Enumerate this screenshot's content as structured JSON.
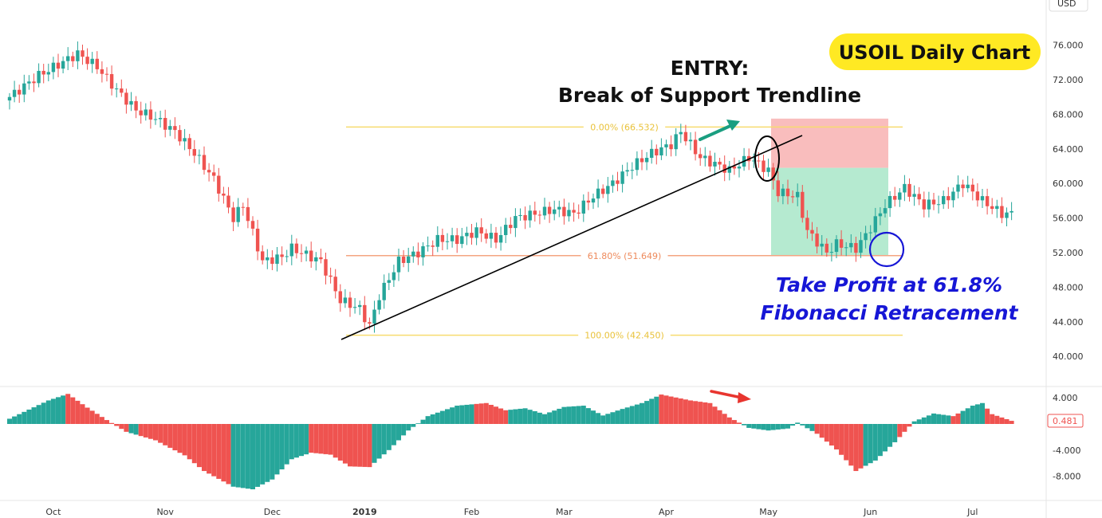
{
  "chart_data": {
    "title": "USOIL Daily Chart",
    "currency": "USD",
    "type": "candlestick",
    "grid": false,
    "price_axis": {
      "ticks": [
        "76.000",
        "72.000",
        "68.000",
        "64.000",
        "60.000",
        "56.000",
        "52.000",
        "48.000",
        "44.000",
        "40.000"
      ],
      "range": [
        38,
        78
      ]
    },
    "osc_axis": {
      "ticks": [
        "4.000",
        "-4.000",
        "-8.000"
      ],
      "last_value": "0.481",
      "range": [
        -10,
        5.5
      ]
    },
    "x_axis": {
      "ticks": [
        "Oct",
        "Nov",
        "Dec",
        "2019",
        "Feb",
        "Mar",
        "Apr",
        "May",
        "Jun",
        "Jul"
      ]
    },
    "price_path": [
      [
        0,
        70.0
      ],
      [
        6,
        72.5
      ],
      [
        14,
        75.0
      ],
      [
        18,
        73.5
      ],
      [
        22,
        70.8
      ],
      [
        26,
        68.5
      ],
      [
        30,
        67.5
      ],
      [
        34,
        66.0
      ],
      [
        38,
        63.5
      ],
      [
        42,
        60.5
      ],
      [
        46,
        56.0
      ],
      [
        48,
        57.5
      ],
      [
        52,
        51.0
      ],
      [
        56,
        51.5
      ],
      [
        58,
        52.5
      ],
      [
        62,
        51.5
      ],
      [
        64,
        51.0
      ],
      [
        68,
        46.5
      ],
      [
        72,
        45.5
      ],
      [
        74,
        43.5
      ],
      [
        76,
        47.0
      ],
      [
        80,
        51.0
      ],
      [
        84,
        52.0
      ],
      [
        88,
        53.5
      ],
      [
        92,
        53.5
      ],
      [
        96,
        54.5
      ],
      [
        100,
        53.5
      ],
      [
        104,
        56.0
      ],
      [
        108,
        56.5
      ],
      [
        112,
        57.0
      ],
      [
        116,
        56.5
      ],
      [
        120,
        58.5
      ],
      [
        124,
        60.0
      ],
      [
        128,
        62.0
      ],
      [
        132,
        63.5
      ],
      [
        136,
        64.5
      ],
      [
        138,
        66.0
      ],
      [
        140,
        64.5
      ],
      [
        142,
        63.0
      ],
      [
        144,
        62.5
      ],
      [
        148,
        61.5
      ],
      [
        152,
        63.0
      ],
      [
        156,
        61.5
      ],
      [
        158,
        59.0
      ],
      [
        162,
        58.5
      ],
      [
        164,
        54.5
      ],
      [
        168,
        52.0
      ],
      [
        170,
        53.0
      ],
      [
        174,
        52.5
      ],
      [
        176,
        54.0
      ],
      [
        180,
        57.5
      ],
      [
        184,
        59.5
      ],
      [
        188,
        57.5
      ],
      [
        192,
        58.0
      ],
      [
        196,
        60.0
      ],
      [
        200,
        58.0
      ],
      [
        204,
        56.5
      ],
      [
        206,
        56.5
      ]
    ],
    "osc_path": [
      [
        0,
        0.8
      ],
      [
        8,
        3.6
      ],
      [
        12,
        4.6
      ],
      [
        16,
        2.5
      ],
      [
        20,
        0.6
      ],
      [
        24,
        -1.2
      ],
      [
        30,
        -2.5
      ],
      [
        36,
        -4.8
      ],
      [
        40,
        -7.2
      ],
      [
        46,
        -9.6
      ],
      [
        50,
        -10.0
      ],
      [
        54,
        -8.5
      ],
      [
        58,
        -5.4
      ],
      [
        62,
        -4.4
      ],
      [
        66,
        -4.7
      ],
      [
        70,
        -6.5
      ],
      [
        74,
        -6.6
      ],
      [
        78,
        -4.0
      ],
      [
        82,
        -1.0
      ],
      [
        86,
        1.2
      ],
      [
        92,
        2.8
      ],
      [
        98,
        3.2
      ],
      [
        102,
        2.1
      ],
      [
        106,
        2.4
      ],
      [
        110,
        1.5
      ],
      [
        114,
        2.6
      ],
      [
        118,
        2.8
      ],
      [
        122,
        1.3
      ],
      [
        126,
        2.3
      ],
      [
        130,
        3.2
      ],
      [
        134,
        4.5
      ],
      [
        136,
        4.2
      ],
      [
        140,
        3.6
      ],
      [
        144,
        3.2
      ],
      [
        148,
        1.0
      ],
      [
        152,
        -0.6
      ],
      [
        156,
        -1.0
      ],
      [
        160,
        -0.7
      ],
      [
        162,
        0.2
      ],
      [
        166,
        -1.5
      ],
      [
        170,
        -3.9
      ],
      [
        174,
        -7.2
      ],
      [
        178,
        -5.6
      ],
      [
        182,
        -2.8
      ],
      [
        186,
        0.4
      ],
      [
        190,
        1.6
      ],
      [
        194,
        1.2
      ],
      [
        198,
        2.8
      ],
      [
        200,
        3.2
      ],
      [
        202,
        1.5
      ],
      [
        206,
        0.481
      ]
    ],
    "osc_red_ranges": [
      [
        12,
        24
      ],
      [
        27,
        45
      ],
      [
        62,
        74
      ],
      [
        96,
        102
      ],
      [
        134,
        150
      ],
      [
        166,
        175
      ],
      [
        183,
        185
      ],
      [
        194,
        195
      ],
      [
        201,
        206
      ]
    ],
    "fib_levels": [
      {
        "label": "0.00% (66.532)",
        "value": 66.532,
        "color": "#f7dc6f"
      },
      {
        "label": "61.80% (51.649)",
        "value": 51.649,
        "color": "#f4a582"
      },
      {
        "label": "100.00% (42.450)",
        "value": 42.45,
        "color": "#f7dc6f"
      }
    ],
    "annotations": {
      "entry_line1": "ENTRY:",
      "entry_line2": "Break of Support Trendline",
      "tp_line1": "Take Profit at 61.8%",
      "tp_line2": "Fibonacci Retracement"
    },
    "colors": {
      "up": "#26a69a",
      "down": "#ef5350",
      "stop_zone": "#f8b6b6",
      "target_zone": "#a8e6c8",
      "trendline": "#000000",
      "title_bg": "#ffe923",
      "tp_text": "#1616d6",
      "circle_entry": "#000000",
      "circle_tp": "#1616d6"
    }
  }
}
